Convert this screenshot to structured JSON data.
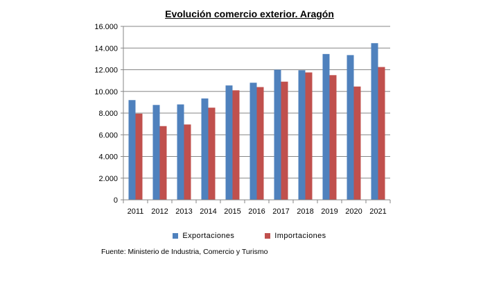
{
  "chart_data": {
    "type": "bar",
    "title": "Evolución comercio exterior. Aragón",
    "categories": [
      "2011",
      "2012",
      "2013",
      "2014",
      "2015",
      "2016",
      "2017",
      "2018",
      "2019",
      "2020",
      "2021"
    ],
    "series": [
      {
        "name": "Exportaciones",
        "color": "#4F81BD",
        "values": [
          9200,
          8750,
          8800,
          9350,
          10550,
          10800,
          12000,
          11950,
          13450,
          13350,
          14450
        ]
      },
      {
        "name": "Importaciones",
        "color": "#C0504D",
        "values": [
          7950,
          6800,
          6950,
          8500,
          10100,
          10400,
          10900,
          11750,
          11500,
          10450,
          12250
        ]
      }
    ],
    "ylim": [
      0,
      16000
    ],
    "yticks": [
      0,
      2000,
      4000,
      6000,
      8000,
      10000,
      12000,
      14000,
      16000
    ],
    "ytick_labels": [
      "0",
      "2.000",
      "4.000",
      "6.000",
      "8.000",
      "10.000",
      "12.000",
      "14.000",
      "16.000"
    ],
    "xlabel": "",
    "ylabel": "",
    "grid": true,
    "legend_position": "bottom"
  },
  "source": "Fuente: Ministerio de Industria, Comercio y Turismo"
}
